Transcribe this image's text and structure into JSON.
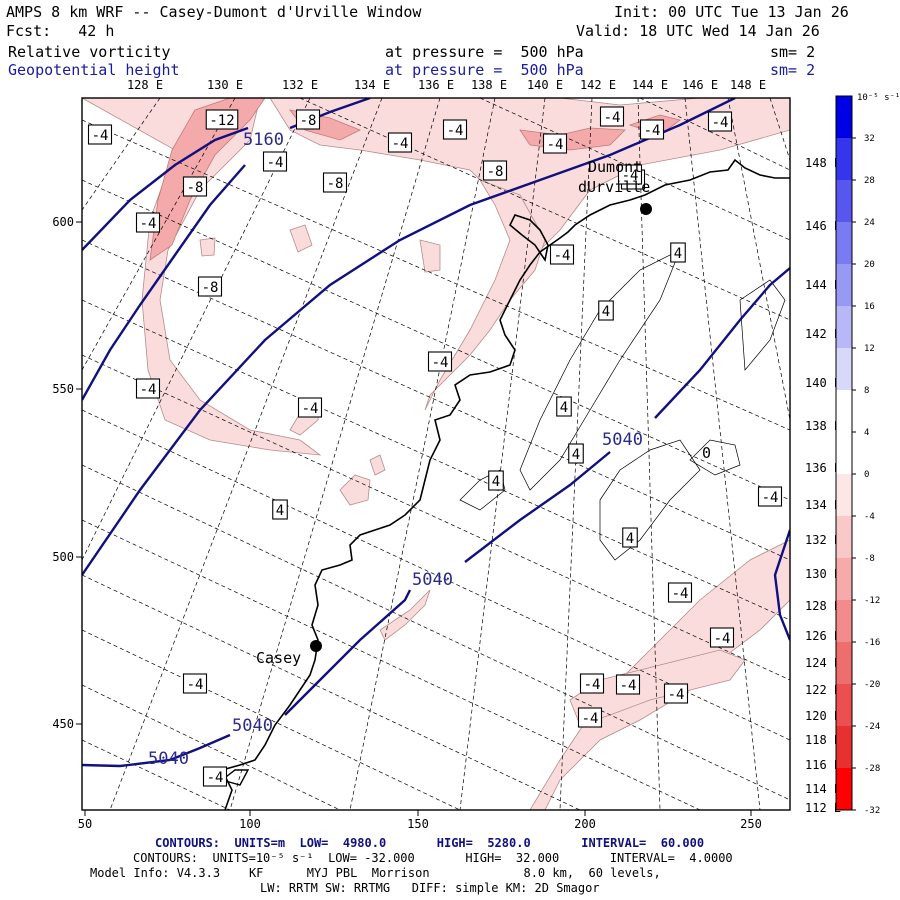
{
  "header": {
    "model_line": "AMPS 8 km WRF -- Casey-Dumont d'Urville Window",
    "init_line": "Init: 00 UTC Tue 13 Jan 26",
    "fcst_line": "Fcst:   42 h",
    "valid_line": "Valid: 18 UTC Wed 14 Jan 26",
    "field1_name": "Relative vorticity",
    "field1_level": "at pressure =  500 hPa",
    "field1_sm": "sm= 2",
    "field2_name": "Geopotential height",
    "field2_level": "at pressure =  500 hPa",
    "field2_sm": "sm= 2"
  },
  "map": {
    "top_lon_labels": [
      "128 E",
      "130 E",
      "132 E",
      "134 E",
      "136 E",
      "138 E",
      "140 E",
      "142 E",
      "144 E",
      "146 E",
      "148 E"
    ],
    "right_lon_labels": [
      "148 E",
      "146 E",
      "144 E",
      "142 E",
      "140 E",
      "138 E",
      "136 E",
      "134 E",
      "132 E",
      "130 E",
      "128 E",
      "126 E",
      "124 E",
      "122 E",
      "120 E",
      "118 E",
      "116 E",
      "114 E",
      "112 E"
    ],
    "left_y_labels": [
      "600",
      "550",
      "500",
      "450"
    ],
    "bottom_x_labels": [
      "50",
      "100",
      "150",
      "200",
      "250"
    ],
    "height_contour_labels": [
      "5160",
      "5040",
      "5040",
      "5040",
      "5040"
    ],
    "vorticity_labels": [
      "-4",
      "-12",
      "-8",
      "-4",
      "-4",
      "-8",
      "-4",
      "-8",
      "-4",
      "-8",
      "-4",
      "-8",
      "-4",
      "-4",
      "-4",
      "-4",
      "-4",
      "-4",
      "-4",
      "-4",
      "4",
      "4",
      "4",
      "4",
      "4",
      "4",
      "4",
      "-4",
      "-4",
      "-4",
      "-4",
      "-4",
      "-4",
      "-4",
      "-4",
      "-4",
      "-4"
    ],
    "stations": [
      {
        "name": "Casey"
      },
      {
        "name": "Dumont"
      },
      {
        "name": "dUrville"
      }
    ],
    "extra_label": "0"
  },
  "colorbar": {
    "unit": "10⁻⁵ s⁻¹",
    "ticks": [
      "32",
      "28",
      "24",
      "20",
      "16",
      "12",
      "8",
      "4",
      "0",
      "-4",
      "-8",
      "-12",
      "-16",
      "-20",
      "-24",
      "-28",
      "-32"
    ],
    "colors": [
      "#0000e6",
      "#3535ee",
      "#5757f0",
      "#7a7af3",
      "#9898f5",
      "#b8b8f8",
      "#d8d8fb",
      "#ffffff",
      "#ffffff",
      "#fde6e6",
      "#f9c8c8",
      "#f6aaaa",
      "#f28c8c",
      "#ee6e6e",
      "#eb4f4f",
      "#e73030",
      "#ff0000"
    ]
  },
  "footer": {
    "line1": "CONTOURS:  UNITS=m  LOW=  4980.0       HIGH=  5280.0       INTERVAL=  60.000",
    "line2": "CONTOURS:  UNITS=10⁻⁵ s⁻¹  LOW= -32.000       HIGH=  32.000       INTERVAL=  4.0000",
    "line3": "Model Info: V4.3.3    KF      MYJ PBL  Morrison             8.0 km,  60 levels,",
    "line4": "LW: RRTM SW: RRTMG   DIFF: simple KM: 2D Smagor"
  },
  "colors": {
    "height_contour": "#101080",
    "coast": "#000000",
    "grid": "#000000",
    "vort_fill": "#fbdcdc",
    "vort_fill_strong": "#f6a9a9"
  }
}
